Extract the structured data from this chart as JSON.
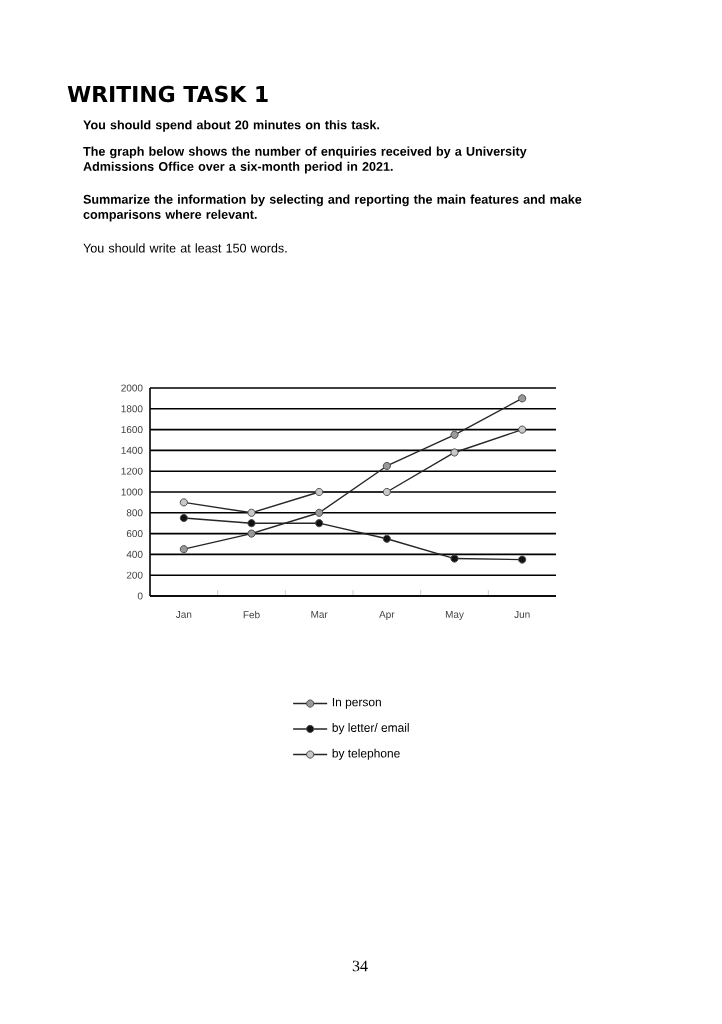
{
  "chart_data": {
    "type": "line",
    "title": "WRITING TASK 1",
    "annotations": [
      "You should spend about 20 minutes on this task.",
      "The graph below shows the number of enquiries received by a University Admissions Office over a six-month period in 2021.",
      "Summarize the information by selecting and reporting the main features and make comparisons where relevant.",
      "You should write at least 150 words.",
      "34"
    ],
    "categories": [
      "Jan",
      "Feb",
      "Mar",
      "Apr",
      "May",
      "Jun"
    ],
    "series": [
      {
        "name": "In person",
        "color": "#999999",
        "values": [
          450,
          600,
          800,
          1250,
          1550,
          1900
        ]
      },
      {
        "name": "by letter/ email",
        "color": "#111111",
        "values": [
          750,
          700,
          700,
          550,
          360,
          350
        ]
      },
      {
        "name": "by telephone",
        "color": "#c8c8c8",
        "values": [
          900,
          800,
          1000,
          1000,
          1380,
          1600
        ]
      }
    ],
    "ylim": [
      0,
      2000
    ],
    "yticks": [
      0,
      200,
      400,
      600,
      800,
      1000,
      1200,
      1400,
      1600,
      1800,
      2000
    ],
    "grid": "y",
    "legend": "bottom",
    "marker": "circle",
    "line_style": "solid"
  }
}
